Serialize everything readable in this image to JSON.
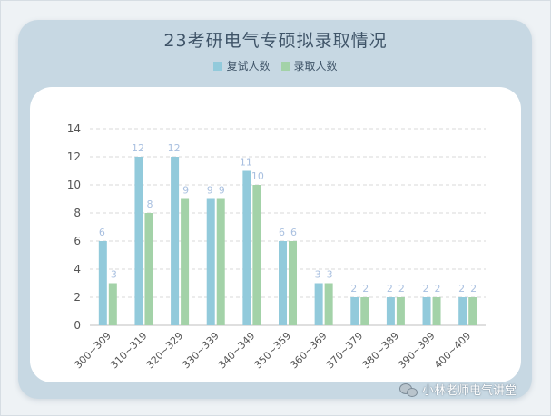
{
  "chart_data": {
    "type": "bar",
    "title": "23考研电气专硕拟录取情况",
    "categories": [
      "300~309",
      "310~319",
      "320~329",
      "330~339",
      "340~349",
      "350~359",
      "360~369",
      "370~379",
      "380~389",
      "390~399",
      "400~409"
    ],
    "series": [
      {
        "name": "复试人数",
        "values": [
          6,
          12,
          12,
          9,
          11,
          6,
          3,
          2,
          2,
          2,
          2
        ]
      },
      {
        "name": "录取人数",
        "values": [
          3,
          8,
          9,
          9,
          10,
          6,
          3,
          2,
          2,
          2,
          2
        ]
      }
    ],
    "ylim": [
      0,
      14
    ],
    "yticks": [
      0,
      2,
      4,
      6,
      8,
      10,
      12,
      14
    ],
    "legend": "top-center",
    "grid": true,
    "colors": {
      "series1": "#92cadb",
      "series2": "#a3d2a8",
      "label": "#a9c0e0",
      "axis_text": "#555555",
      "grid": "#d9d9d9"
    }
  },
  "watermark": {
    "text": "小林老师电气讲堂",
    "icon": "wechat-icon"
  }
}
